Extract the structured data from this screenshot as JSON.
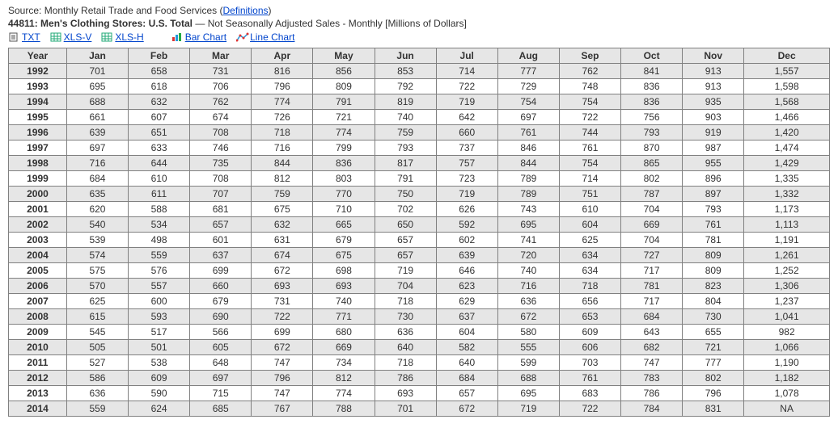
{
  "source": {
    "label": "Source: ",
    "text": "Monthly Retail Trade and Food Services",
    "definitions": "Definitions"
  },
  "title": {
    "code": "44811:",
    "name": "Men's Clothing Stores: U.S. Total",
    "sep": " — ",
    "desc": "Not Seasonally Adjusted Sales - Monthly [Millions of Dollars]"
  },
  "toolbar": {
    "txt": "TXT",
    "xlsv": "XLS-V",
    "xlsh": "XLS-H",
    "bar": "Bar Chart",
    "line": "Line Chart"
  },
  "table": {
    "columns": [
      "Year",
      "Jan",
      "Feb",
      "Mar",
      "Apr",
      "May",
      "Jun",
      "Jul",
      "Aug",
      "Sep",
      "Oct",
      "Nov",
      "Dec"
    ],
    "rows": [
      [
        "1992",
        "701",
        "658",
        "731",
        "816",
        "856",
        "853",
        "714",
        "777",
        "762",
        "841",
        "913",
        "1,557"
      ],
      [
        "1993",
        "695",
        "618",
        "706",
        "796",
        "809",
        "792",
        "722",
        "729",
        "748",
        "836",
        "913",
        "1,598"
      ],
      [
        "1994",
        "688",
        "632",
        "762",
        "774",
        "791",
        "819",
        "719",
        "754",
        "754",
        "836",
        "935",
        "1,568"
      ],
      [
        "1995",
        "661",
        "607",
        "674",
        "726",
        "721",
        "740",
        "642",
        "697",
        "722",
        "756",
        "903",
        "1,466"
      ],
      [
        "1996",
        "639",
        "651",
        "708",
        "718",
        "774",
        "759",
        "660",
        "761",
        "744",
        "793",
        "919",
        "1,420"
      ],
      [
        "1997",
        "697",
        "633",
        "746",
        "716",
        "799",
        "793",
        "737",
        "846",
        "761",
        "870",
        "987",
        "1,474"
      ],
      [
        "1998",
        "716",
        "644",
        "735",
        "844",
        "836",
        "817",
        "757",
        "844",
        "754",
        "865",
        "955",
        "1,429"
      ],
      [
        "1999",
        "684",
        "610",
        "708",
        "812",
        "803",
        "791",
        "723",
        "789",
        "714",
        "802",
        "896",
        "1,335"
      ],
      [
        "2000",
        "635",
        "611",
        "707",
        "759",
        "770",
        "750",
        "719",
        "789",
        "751",
        "787",
        "897",
        "1,332"
      ],
      [
        "2001",
        "620",
        "588",
        "681",
        "675",
        "710",
        "702",
        "626",
        "743",
        "610",
        "704",
        "793",
        "1,173"
      ],
      [
        "2002",
        "540",
        "534",
        "657",
        "632",
        "665",
        "650",
        "592",
        "695",
        "604",
        "669",
        "761",
        "1,113"
      ],
      [
        "2003",
        "539",
        "498",
        "601",
        "631",
        "679",
        "657",
        "602",
        "741",
        "625",
        "704",
        "781",
        "1,191"
      ],
      [
        "2004",
        "574",
        "559",
        "637",
        "674",
        "675",
        "657",
        "639",
        "720",
        "634",
        "727",
        "809",
        "1,261"
      ],
      [
        "2005",
        "575",
        "576",
        "699",
        "672",
        "698",
        "719",
        "646",
        "740",
        "634",
        "717",
        "809",
        "1,252"
      ],
      [
        "2006",
        "570",
        "557",
        "660",
        "693",
        "693",
        "704",
        "623",
        "716",
        "718",
        "781",
        "823",
        "1,306"
      ],
      [
        "2007",
        "625",
        "600",
        "679",
        "731",
        "740",
        "718",
        "629",
        "636",
        "656",
        "717",
        "804",
        "1,237"
      ],
      [
        "2008",
        "615",
        "593",
        "690",
        "722",
        "771",
        "730",
        "637",
        "672",
        "653",
        "684",
        "730",
        "1,041"
      ],
      [
        "2009",
        "545",
        "517",
        "566",
        "699",
        "680",
        "636",
        "604",
        "580",
        "609",
        "643",
        "655",
        "982"
      ],
      [
        "2010",
        "505",
        "501",
        "605",
        "672",
        "669",
        "640",
        "582",
        "555",
        "606",
        "682",
        "721",
        "1,066"
      ],
      [
        "2011",
        "527",
        "538",
        "648",
        "747",
        "734",
        "718",
        "640",
        "599",
        "703",
        "747",
        "777",
        "1,190"
      ],
      [
        "2012",
        "586",
        "609",
        "697",
        "796",
        "812",
        "786",
        "684",
        "688",
        "761",
        "783",
        "802",
        "1,182"
      ],
      [
        "2013",
        "636",
        "590",
        "715",
        "747",
        "774",
        "693",
        "657",
        "695",
        "683",
        "786",
        "796",
        "1,078"
      ],
      [
        "2014",
        "559",
        "624",
        "685",
        "767",
        "788",
        "701",
        "672",
        "719",
        "722",
        "784",
        "831",
        "NA"
      ]
    ]
  },
  "colors": {
    "link": "#0044cc",
    "alt_row": "#e6e6e6",
    "border": "#808080"
  }
}
